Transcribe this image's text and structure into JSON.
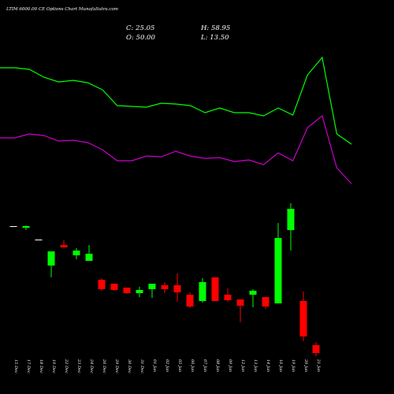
{
  "chart_data": [
    {
      "type": "line",
      "ylim": [
        0,
        250
      ],
      "series": [
        {
          "color": "#00ff00",
          "values": [
            164,
            164,
            162,
            152,
            146,
            148,
            145,
            136,
            116,
            115,
            114,
            119,
            118,
            116,
            107,
            113,
            107,
            107,
            103,
            113,
            104,
            155,
            177,
            80,
            67
          ]
        },
        {
          "color": "#cc00cc",
          "values": [
            75,
            75,
            80,
            78,
            71,
            72,
            69,
            60,
            46,
            46,
            52,
            51,
            58,
            52,
            49,
            50,
            45,
            47,
            41,
            56,
            46,
            88,
            103,
            37,
            17
          ]
        }
      ]
    },
    {
      "type": "candlestick",
      "title": "LTIM 6000.00 CE Options Chart MunafaSutra.com",
      "header": [
        "C: 25.05",
        "H: 58.95",
        "O: 50.00",
        "L: 13.50"
      ],
      "ylim": [
        0,
        520
      ],
      "up_color": "#00ff00",
      "down_color": "#ff0000",
      "flat_color": "#ffffff",
      "categories": [
        "15 Dec",
        "17 Dec",
        "18 Dec",
        "19 Dec",
        "22 Dec",
        "23 Dec",
        "24 Dec",
        "26 Dec",
        "29 Dec",
        "30 Dec",
        "31 Dec",
        "01 Jan",
        "02 Jan",
        "05 Jan",
        "06 Jan",
        "07 Jan",
        "08 Jan",
        "09 Jan",
        "12 Jan",
        "13 Jan",
        "14 Jan",
        "16 Jan",
        "19 Jan",
        "20 Jan",
        "21 Jan"
      ],
      "open": [
        427.5,
        422.5,
        385,
        302.5,
        367.5,
        335,
        317.5,
        257.5,
        245,
        232.5,
        215,
        227.5,
        240,
        240,
        210,
        190,
        265,
        210,
        195,
        210,
        202.5,
        182.5,
        415,
        190,
        50
      ],
      "high": [
        427.5,
        430,
        385,
        347.5,
        382.5,
        357.5,
        367.5,
        262.5,
        245,
        232.5,
        235,
        245,
        250,
        277.5,
        217.5,
        262.5,
        265,
        230,
        195,
        227.5,
        202.5,
        437.5,
        500,
        220,
        58.95
      ],
      "low": [
        427.5,
        415,
        385,
        265,
        360,
        322.5,
        317.5,
        222.5,
        222.5,
        212.5,
        202.5,
        200,
        215,
        187.5,
        167.5,
        185,
        190,
        187.5,
        122.5,
        170,
        165,
        182.5,
        350,
        62.5,
        13.5
      ],
      "close": [
        427.5,
        427.5,
        385,
        347.5,
        360,
        350,
        340,
        227.5,
        225,
        215,
        225,
        245,
        227.5,
        217.5,
        172.5,
        250,
        190,
        192.5,
        175,
        222.5,
        172.5,
        390,
        482.5,
        77.5,
        25.05
      ]
    }
  ]
}
